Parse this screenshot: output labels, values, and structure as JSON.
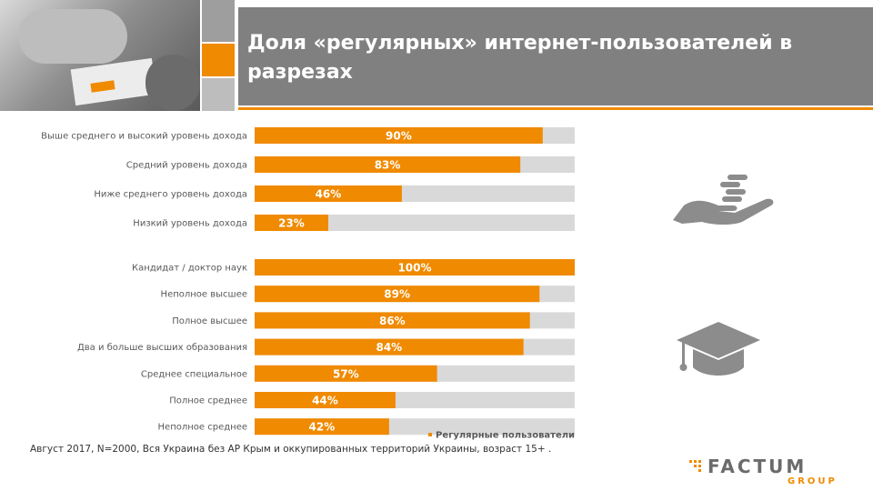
{
  "title": "Доля «регулярных» интернет-пользователей в разрезах",
  "footnote": "Август 2017, N=2000, Вся Украина без АР Крым и оккупированных территорий Украины, возраст 15+ .",
  "logo": {
    "main": "FACTUM",
    "sub": "GROUP"
  },
  "colors": {
    "bar": "#f08a00",
    "track": "#d9d9d9",
    "header": "#808080",
    "accent": "#f08a00"
  },
  "icons": [
    "hand-with-coins-icon",
    "graduation-cap-icon"
  ],
  "chart_data": {
    "type": "bar",
    "orientation": "horizontal",
    "xlim": [
      0,
      100
    ],
    "grid": false,
    "legend": "bottom-right",
    "series": [
      {
        "name": "Регулярные пользователи"
      }
    ],
    "groups": [
      {
        "categories": [
          "Выше среднего и высокий уровень дохода",
          "Средний уровень дохода",
          "Ниже среднего уровень дохода",
          "Низкий уровень дохода"
        ],
        "values": [
          90,
          83,
          46,
          23
        ],
        "labels": [
          "90%",
          "83%",
          "46%",
          "23%"
        ]
      },
      {
        "categories": [
          "Кандидат / доктор наук",
          "Неполное высшее",
          "Полное высшее",
          "Два и больше высших образования",
          "Среднее специальное",
          "Полное среднее",
          "Неполное среднее"
        ],
        "values": [
          100,
          89,
          86,
          84,
          57,
          44,
          42
        ],
        "labels": [
          "100%",
          "89%",
          "86%",
          "84%",
          "57%",
          "44%",
          "42%"
        ]
      }
    ]
  }
}
